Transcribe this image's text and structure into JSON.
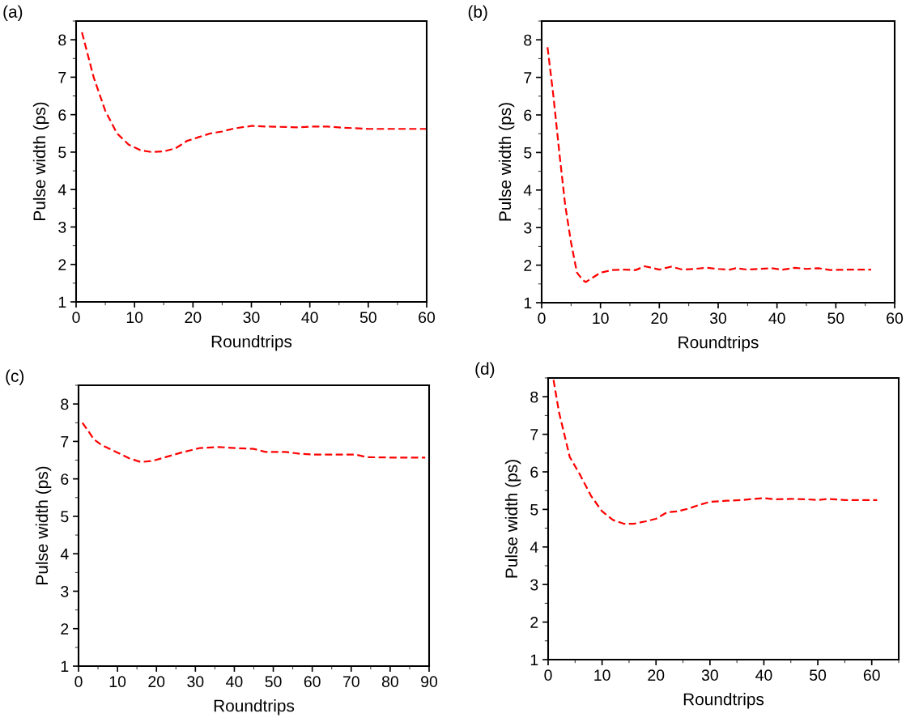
{
  "chart_data": [
    {
      "type": "line",
      "title": "(a)",
      "xlabel": "Roundtrips",
      "ylabel": "Pulse width (ps)",
      "xlim": [
        0,
        60
      ],
      "xticks": [
        0,
        10,
        20,
        30,
        40,
        50,
        60
      ],
      "ylim": [
        1,
        8.5
      ],
      "yticks": [
        1,
        2,
        3,
        4,
        5,
        6,
        7,
        8
      ],
      "line_style": "dashed",
      "marker": "none",
      "series": [
        {
          "color": "#ff0000",
          "x": [
            1,
            3,
            5,
            7,
            9,
            11,
            13,
            15,
            17,
            19,
            21,
            23,
            25,
            27,
            30,
            33,
            36,
            38,
            40,
            43,
            46,
            50,
            55,
            60
          ],
          "values": [
            8.2,
            7.0,
            6.1,
            5.5,
            5.2,
            5.05,
            5.0,
            5.02,
            5.1,
            5.3,
            5.4,
            5.5,
            5.55,
            5.63,
            5.7,
            5.68,
            5.67,
            5.66,
            5.68,
            5.68,
            5.65,
            5.62,
            5.62,
            5.62
          ]
        }
      ]
    },
    {
      "type": "line",
      "title": "(b)",
      "xlabel": "Roundtrips",
      "ylabel": "Pulse width (ps)",
      "xlim": [
        0,
        60
      ],
      "xticks": [
        0,
        10,
        20,
        30,
        40,
        50,
        60
      ],
      "ylim": [
        1,
        8.5
      ],
      "yticks": [
        1,
        2,
        3,
        4,
        5,
        6,
        7,
        8
      ],
      "line_style": "dashed",
      "marker": "none",
      "series": [
        {
          "color": "#ff0000",
          "x": [
            1,
            2,
            3,
            4,
            5,
            6,
            7,
            7.5,
            8,
            9,
            10,
            12,
            14,
            16,
            17.5,
            19,
            20,
            22,
            24,
            26,
            28,
            30,
            32,
            33,
            35,
            37,
            39,
            41,
            43,
            45,
            47,
            49,
            52,
            56
          ],
          "values": [
            7.8,
            6.5,
            5.0,
            3.6,
            2.6,
            1.8,
            1.6,
            1.55,
            1.6,
            1.7,
            1.8,
            1.87,
            1.88,
            1.87,
            1.97,
            1.92,
            1.88,
            1.96,
            1.88,
            1.9,
            1.93,
            1.9,
            1.88,
            1.92,
            1.88,
            1.9,
            1.92,
            1.88,
            1.93,
            1.9,
            1.92,
            1.87,
            1.88,
            1.88
          ]
        }
      ]
    },
    {
      "type": "line",
      "title": "(c)",
      "xlabel": "Roundtrips",
      "ylabel": "Pulse width (ps)",
      "xlim": [
        0,
        90
      ],
      "xticks": [
        0,
        10,
        20,
        30,
        40,
        50,
        60,
        70,
        80,
        90
      ],
      "ylim": [
        1,
        8.5
      ],
      "yticks": [
        1,
        2,
        3,
        4,
        5,
        6,
        7,
        8
      ],
      "line_style": "dashed",
      "marker": "none",
      "series": [
        {
          "color": "#ff0000",
          "x": [
            1,
            4,
            6,
            10,
            13,
            16,
            19,
            23,
            27,
            31,
            36,
            41,
            45,
            48,
            53,
            57,
            60,
            65,
            71,
            74,
            80,
            89
          ],
          "values": [
            7.5,
            7.05,
            6.9,
            6.7,
            6.55,
            6.45,
            6.48,
            6.6,
            6.72,
            6.82,
            6.85,
            6.82,
            6.8,
            6.72,
            6.72,
            6.67,
            6.65,
            6.65,
            6.65,
            6.58,
            6.57,
            6.57
          ]
        }
      ]
    },
    {
      "type": "line",
      "title": "(d)",
      "xlabel": "Roundtrips",
      "ylabel": "Pulse width (ps)",
      "xlim": [
        0,
        65
      ],
      "xticks": [
        0,
        10,
        20,
        30,
        40,
        50,
        60
      ],
      "ylim": [
        1,
        8.5
      ],
      "yticks": [
        1,
        2,
        3,
        4,
        5,
        6,
        7,
        8
      ],
      "line_style": "dashed",
      "marker": "none",
      "series": [
        {
          "color": "#ff0000",
          "x": [
            1,
            2,
            3,
            4,
            6,
            8,
            10,
            12,
            14,
            16,
            18,
            20,
            22,
            24,
            26,
            28,
            30,
            33,
            36,
            38,
            40,
            42,
            45,
            48,
            50,
            52,
            55,
            61
          ],
          "values": [
            8.45,
            7.6,
            7.0,
            6.4,
            5.9,
            5.35,
            4.95,
            4.72,
            4.62,
            4.62,
            4.68,
            4.75,
            4.92,
            4.95,
            5.02,
            5.12,
            5.2,
            5.23,
            5.25,
            5.28,
            5.3,
            5.27,
            5.28,
            5.27,
            5.25,
            5.28,
            5.25,
            5.25
          ]
        }
      ]
    }
  ]
}
